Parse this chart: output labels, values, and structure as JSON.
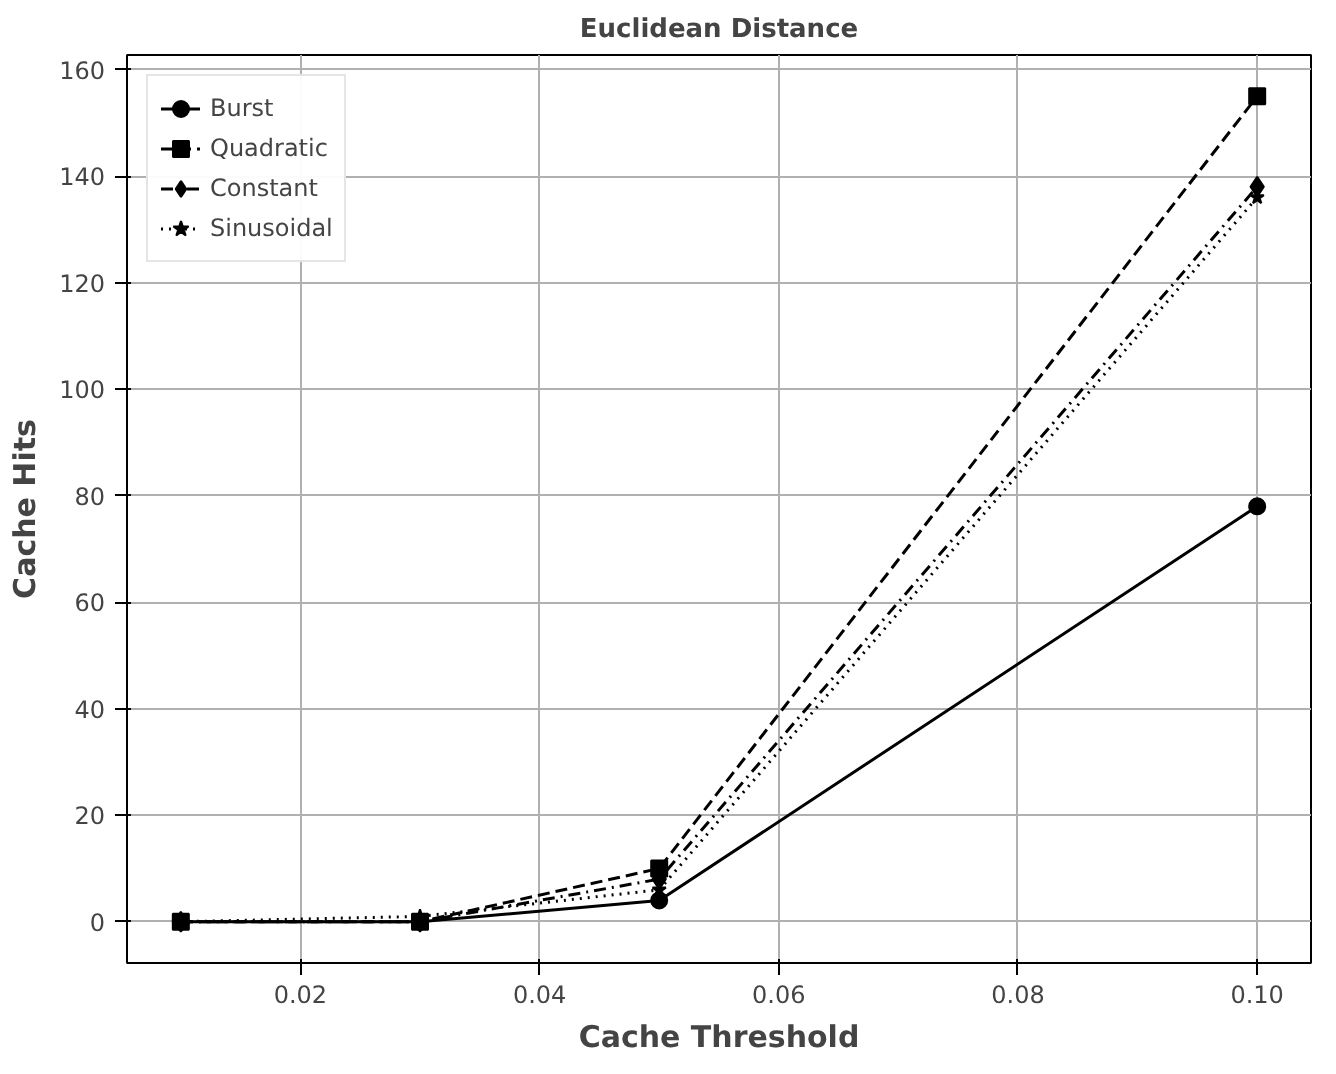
{
  "chart_data": {
    "type": "line",
    "title": "Euclidean Distance",
    "xlabel": "Cache Threshold",
    "ylabel": "Cache Hits",
    "x": [
      0.01,
      0.03,
      0.05,
      0.1
    ],
    "series": [
      {
        "name": "Burst",
        "color": "#000000",
        "values": [
          0,
          0,
          4,
          78
        ],
        "marker": "circle",
        "line_style": "solid"
      },
      {
        "name": "Quadratic",
        "color": "#000000",
        "values": [
          0,
          0,
          10,
          155
        ],
        "marker": "square",
        "line_style": "dashed"
      },
      {
        "name": "Constant",
        "color": "#000000",
        "values": [
          0,
          0,
          8,
          138
        ],
        "marker": "diamond",
        "line_style": "dashdot"
      },
      {
        "name": "Sinusoidal",
        "color": "#000000",
        "values": [
          0,
          1,
          6,
          136
        ],
        "marker": "star",
        "line_style": "dotted"
      }
    ],
    "xlim": [
      0.0055,
      0.1045
    ],
    "xticks": [
      {
        "value": 0.02,
        "label": "0.02"
      },
      {
        "value": 0.04,
        "label": "0.04"
      },
      {
        "value": 0.06,
        "label": "0.06"
      },
      {
        "value": 0.08,
        "label": "0.08"
      },
      {
        "value": 0.1,
        "label": "0.10"
      }
    ],
    "ylim": [
      -7.75,
      162.75
    ],
    "yticks": [
      0,
      20,
      40,
      60,
      80,
      100,
      120,
      140,
      160
    ],
    "grid": true,
    "legend": "top left"
  }
}
